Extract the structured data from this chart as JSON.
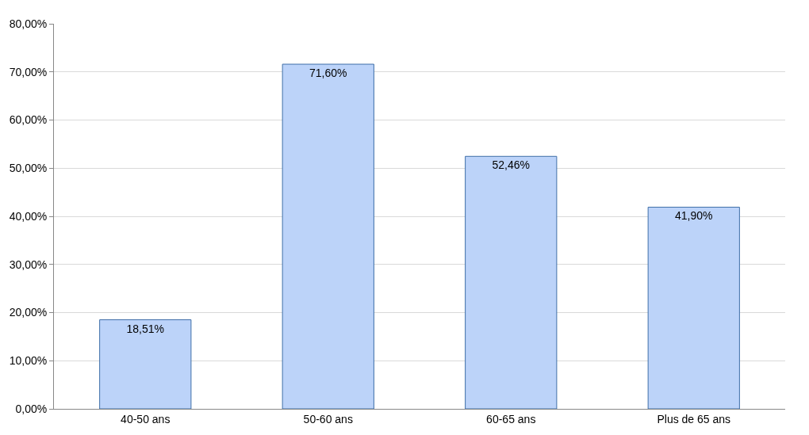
{
  "chart_data": {
    "type": "bar",
    "categories": [
      "40-50 ans",
      "50-60 ans",
      "60-65 ans",
      "Plus de 65 ans"
    ],
    "values": [
      18.51,
      71.6,
      52.46,
      41.9
    ],
    "value_labels": [
      "18,51%",
      "71,60%",
      "52,46%",
      "41,90%"
    ],
    "color": "#bcd3f9",
    "ylim": [
      0,
      80
    ],
    "yticks": [
      {
        "value": 0,
        "label": "0,00%"
      },
      {
        "value": 10,
        "label": "10,00%"
      },
      {
        "value": 20,
        "label": "20,00%"
      },
      {
        "value": 30,
        "label": "30,00%"
      },
      {
        "value": 40,
        "label": "40,00%"
      },
      {
        "value": 50,
        "label": "50,00%"
      },
      {
        "value": 60,
        "label": "60,00%"
      },
      {
        "value": 70,
        "label": "70,00%"
      },
      {
        "value": 80,
        "label": "80,00%"
      }
    ],
    "grid": "y",
    "legend": false
  }
}
